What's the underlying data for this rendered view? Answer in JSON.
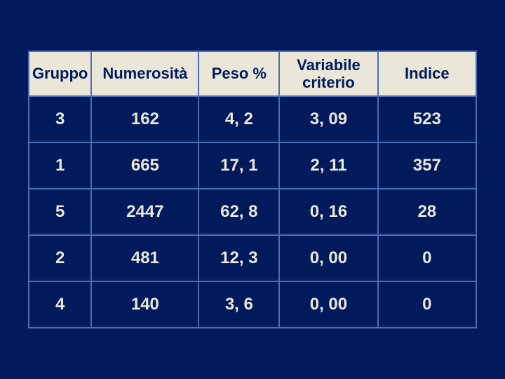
{
  "table": {
    "background_color": "#001a5c",
    "header_background": "#eae6d8",
    "header_text_color": "#001a5c",
    "cell_text_color": "#eae6d8",
    "border_color": "#4a6db8",
    "header_fontsize": 22,
    "cell_fontsize": 24,
    "columns": [
      {
        "key": "gruppo",
        "label": "Gruppo",
        "width_pct": 14
      },
      {
        "key": "numer",
        "label": "Numerosità",
        "width_pct": 24
      },
      {
        "key": "peso",
        "label": "Peso %",
        "width_pct": 18
      },
      {
        "key": "varcrit",
        "label": "Variabile criterio",
        "width_pct": 22,
        "label_lines": [
          "Variabile",
          "criterio"
        ]
      },
      {
        "key": "indice",
        "label": "Indice",
        "width_pct": 22
      }
    ],
    "rows": [
      {
        "gruppo": "3",
        "numer": "162",
        "peso": "4, 2",
        "varcrit": "3, 09",
        "indice": "523"
      },
      {
        "gruppo": "1",
        "numer": "665",
        "peso": "17, 1",
        "varcrit": "2, 11",
        "indice": "357"
      },
      {
        "gruppo": "5",
        "numer": "2447",
        "peso": "62, 8",
        "varcrit": "0, 16",
        "indice": "28"
      },
      {
        "gruppo": "2",
        "numer": "481",
        "peso": "12, 3",
        "varcrit": "0, 00",
        "indice": "0"
      },
      {
        "gruppo": "4",
        "numer": "140",
        "peso": "3, 6",
        "varcrit": "0, 00",
        "indice": "0"
      }
    ]
  }
}
